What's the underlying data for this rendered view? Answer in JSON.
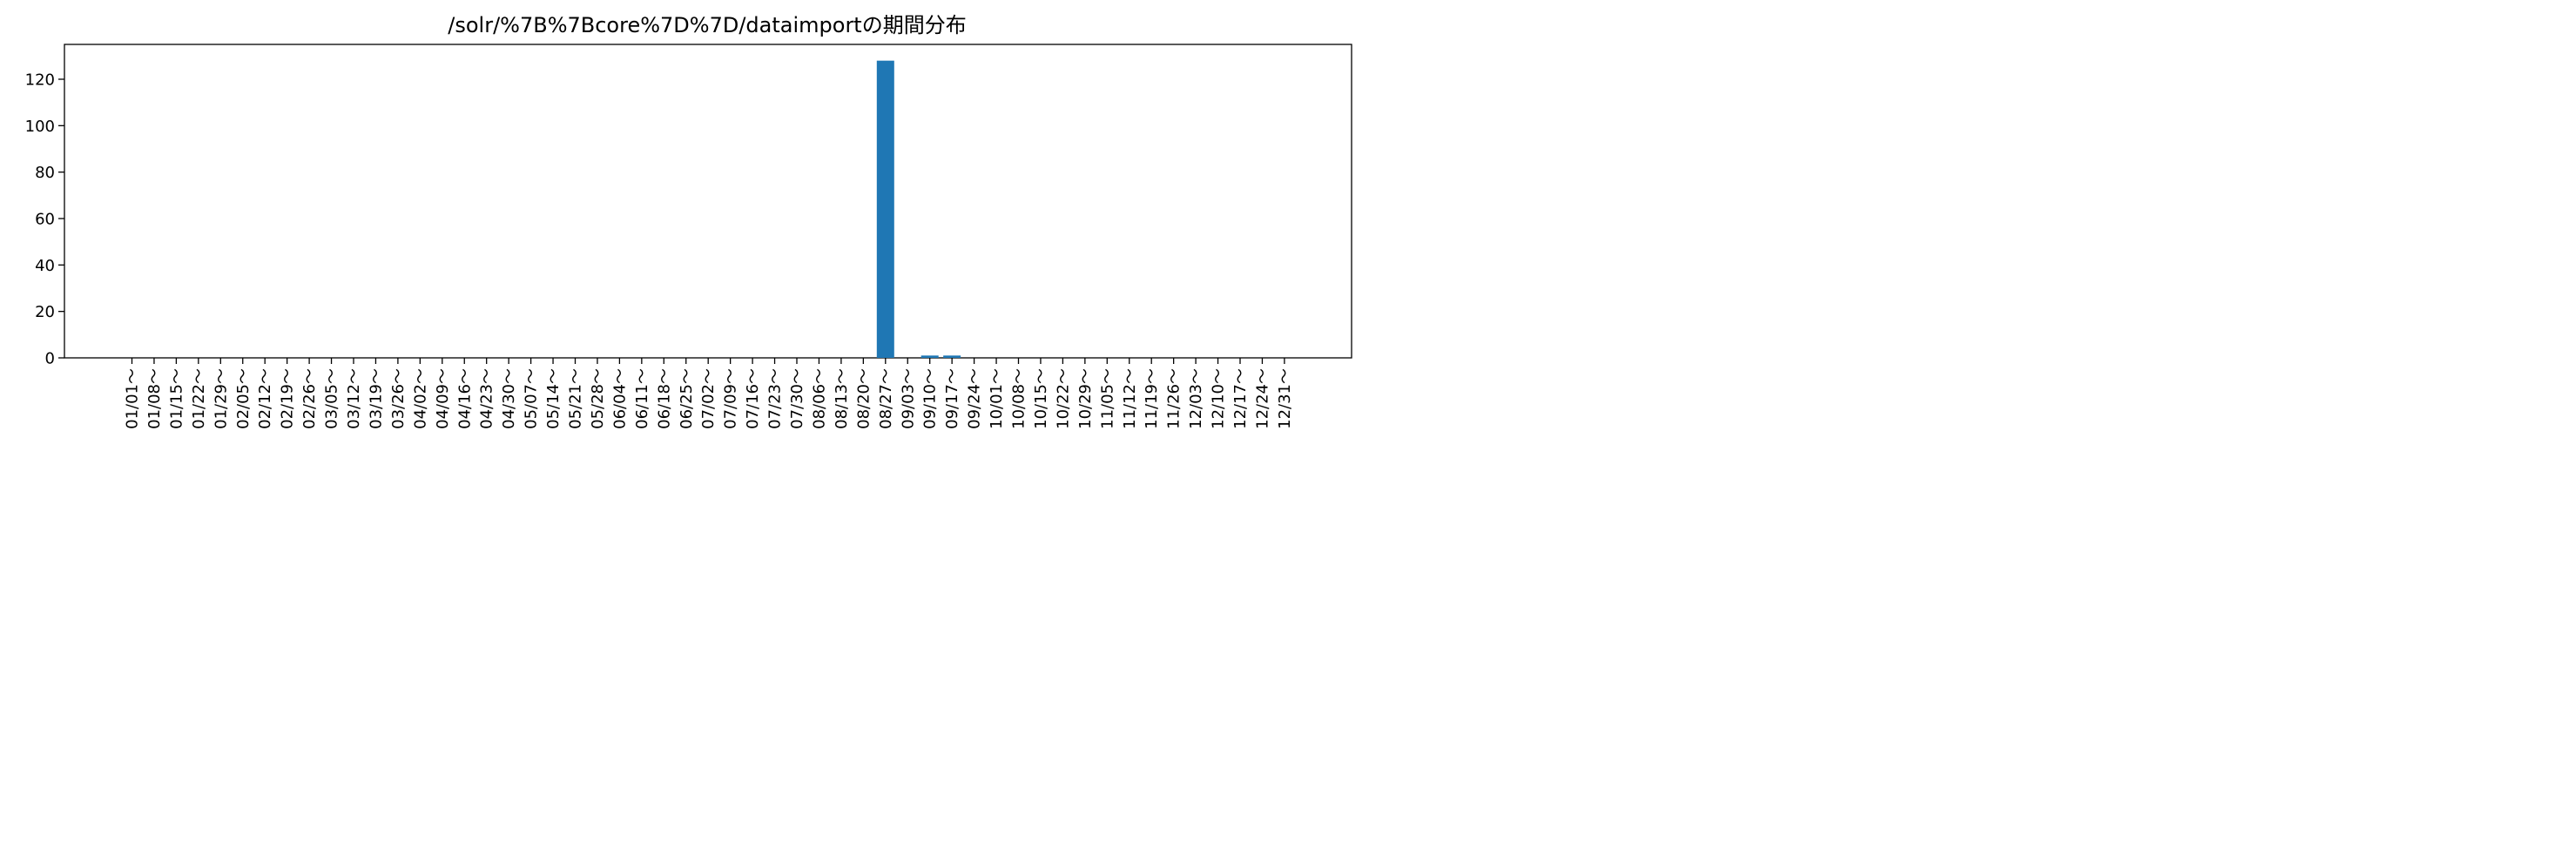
{
  "chart_data": {
    "type": "bar",
    "title": "/solr/%7B%7Bcore%7D%7D/dataimportの期間分布",
    "xlabel": "",
    "ylabel": "",
    "ylim": [
      0,
      135
    ],
    "yticks": [
      0,
      20,
      40,
      60,
      80,
      100,
      120
    ],
    "grid": false,
    "bar_color": "#1f77b4",
    "categories": [
      "01/01～",
      "01/08～",
      "01/15～",
      "01/22～",
      "01/29～",
      "02/05～",
      "02/12～",
      "02/19～",
      "02/26～",
      "03/05～",
      "03/12～",
      "03/19～",
      "03/26～",
      "04/02～",
      "04/09～",
      "04/16～",
      "04/23～",
      "04/30～",
      "05/07～",
      "05/14～",
      "05/21～",
      "05/28～",
      "06/04～",
      "06/11～",
      "06/18～",
      "06/25～",
      "07/02～",
      "07/09～",
      "07/16～",
      "07/23～",
      "07/30～",
      "08/06～",
      "08/13～",
      "08/20～",
      "08/27～",
      "09/03～",
      "09/10～",
      "09/17～",
      "09/24～",
      "10/01～",
      "10/08～",
      "10/15～",
      "10/22～",
      "10/29～",
      "11/05～",
      "11/12～",
      "11/19～",
      "11/26～",
      "12/03～",
      "12/10～",
      "12/17～",
      "12/24～",
      "12/31～"
    ],
    "values": [
      0,
      0,
      0,
      0,
      0,
      0,
      0,
      0,
      0,
      0,
      0,
      0,
      0,
      0,
      0,
      0,
      0,
      0,
      0,
      0,
      0,
      0,
      0,
      0,
      0,
      0,
      0,
      0,
      0,
      0,
      0,
      0,
      0,
      0,
      128,
      0,
      1,
      1,
      0,
      0,
      0,
      0,
      0,
      0,
      0,
      0,
      0,
      0,
      0,
      0,
      0,
      0,
      0
    ]
  }
}
